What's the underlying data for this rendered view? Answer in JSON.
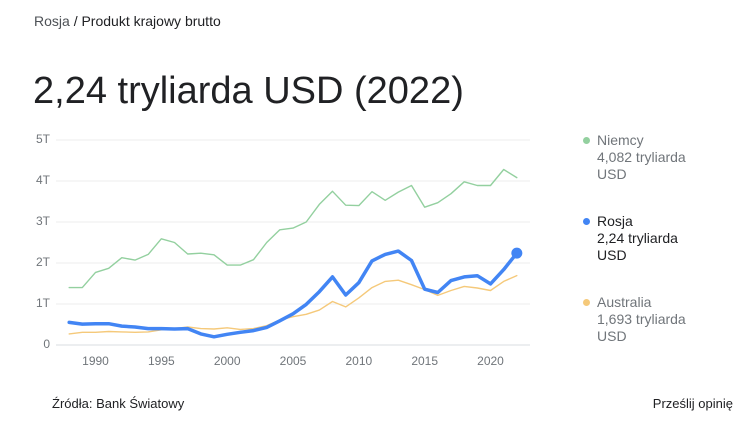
{
  "breadcrumb": {
    "country": "Rosja",
    "separator": "/",
    "topic": "Produkt krajowy brutto"
  },
  "chart_data": {
    "type": "line",
    "title": "2,24 tryliarda USD (2022)",
    "x": [
      1988,
      1989,
      1990,
      1991,
      1992,
      1993,
      1994,
      1995,
      1996,
      1997,
      1998,
      1999,
      2000,
      2001,
      2002,
      2003,
      2004,
      2005,
      2006,
      2007,
      2008,
      2009,
      2010,
      2011,
      2012,
      2013,
      2014,
      2015,
      2016,
      2017,
      2018,
      2019,
      2020,
      2021,
      2022
    ],
    "xlim": [
      1987,
      2023
    ],
    "xticks": [
      1990,
      1995,
      2000,
      2005,
      2010,
      2015,
      2020
    ],
    "ylim": [
      0,
      5
    ],
    "yticks": [
      0,
      {
        "value": 1,
        "label": "1T"
      },
      {
        "value": 2,
        "label": "2T"
      },
      {
        "value": 3,
        "label": "3T"
      },
      {
        "value": 4,
        "label": "4T"
      },
      {
        "value": 5,
        "label": "5T"
      }
    ],
    "grid": true,
    "legend": "right",
    "series": [
      {
        "name": "Niemcy",
        "color": "#93d09f",
        "latest_label": "4,082 tryliarda USD",
        "values": [
          1.4,
          1.4,
          1.77,
          1.87,
          2.13,
          2.07,
          2.21,
          2.59,
          2.5,
          2.22,
          2.24,
          2.2,
          1.95,
          1.95,
          2.08,
          2.5,
          2.81,
          2.85,
          3.0,
          3.43,
          3.75,
          3.41,
          3.4,
          3.74,
          3.53,
          3.73,
          3.89,
          3.36,
          3.47,
          3.69,
          3.98,
          3.89,
          3.89,
          4.28,
          4.082
        ]
      },
      {
        "name": "Rosja",
        "color": "#4285f4",
        "latest_label": "2,24 tryliarda USD",
        "values": [
          0.55,
          0.51,
          0.52,
          0.52,
          0.46,
          0.44,
          0.4,
          0.4,
          0.39,
          0.4,
          0.27,
          0.2,
          0.26,
          0.31,
          0.35,
          0.43,
          0.59,
          0.76,
          0.99,
          1.3,
          1.66,
          1.22,
          1.52,
          2.05,
          2.21,
          2.29,
          2.06,
          1.36,
          1.28,
          1.57,
          1.66,
          1.69,
          1.49,
          1.84,
          2.24
        ]
      },
      {
        "name": "Australia",
        "color": "#f5c97a",
        "latest_label": "1,693 tryliarda USD",
        "values": [
          0.27,
          0.31,
          0.31,
          0.33,
          0.32,
          0.31,
          0.32,
          0.37,
          0.4,
          0.44,
          0.4,
          0.39,
          0.42,
          0.38,
          0.4,
          0.47,
          0.61,
          0.69,
          0.75,
          0.85,
          1.06,
          0.93,
          1.15,
          1.4,
          1.55,
          1.58,
          1.47,
          1.35,
          1.21,
          1.33,
          1.43,
          1.39,
          1.33,
          1.55,
          1.693
        ]
      }
    ]
  },
  "footer": {
    "source": "Źródła: Bank Światowy",
    "feedback": "Prześlij opinię"
  }
}
